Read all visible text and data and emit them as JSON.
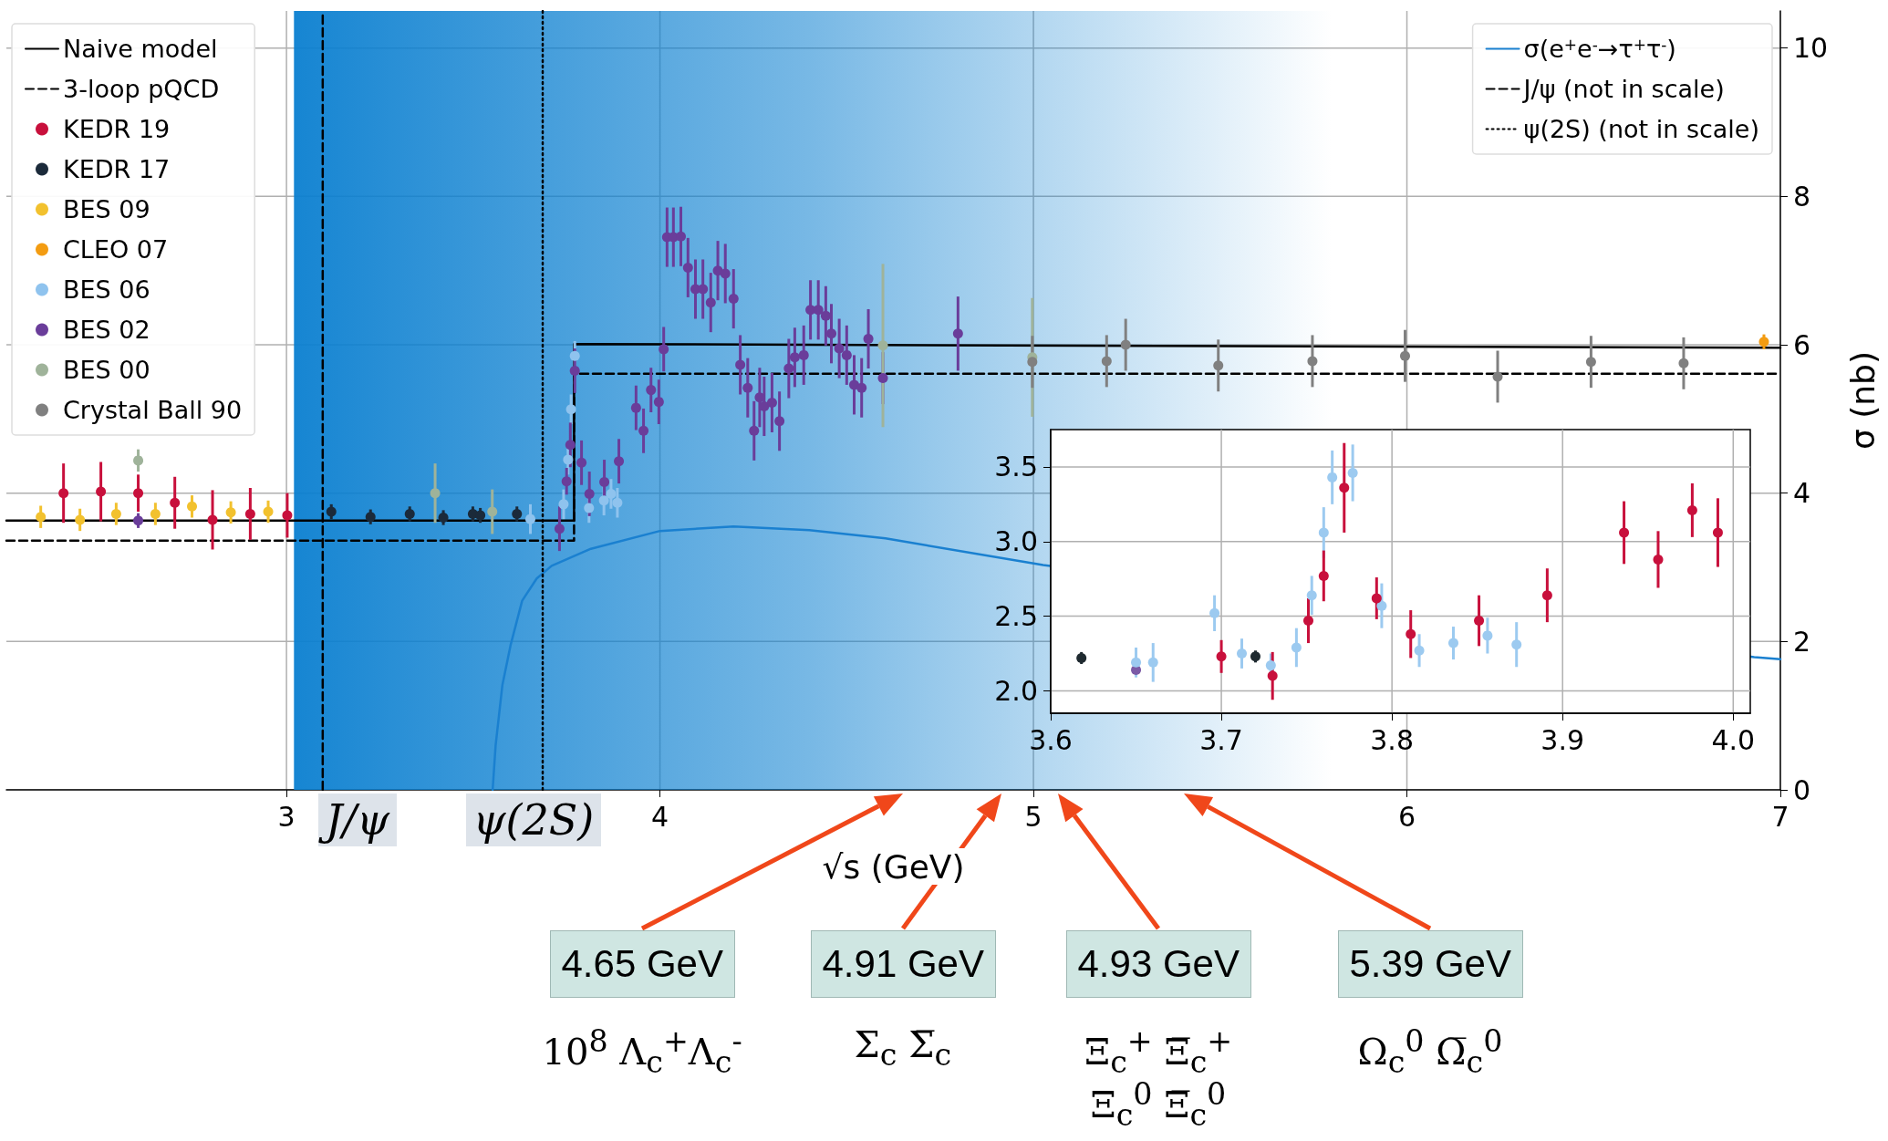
{
  "chart_data": [
    {
      "type": "scatter",
      "xlabel": "√s (GeV)",
      "ylabel": "σ (nb)",
      "xlim": [
        2.25,
        7
      ],
      "xticks": [
        3,
        4,
        5,
        6,
        7
      ],
      "ylim": [
        0,
        10.5
      ],
      "yticks": [
        0,
        2,
        4,
        6,
        8,
        10
      ],
      "grid": true,
      "legend": "top",
      "bands": [
        {
          "axis": "x",
          "from": 3.02,
          "to": 5.8,
          "color": "#0a7fd0"
        }
      ],
      "series": [
        {
          "name": "Naive model",
          "type": "line",
          "color": "#000000",
          "x": [
            2.25,
            3.77,
            3.77,
            7
          ],
          "values": [
            3.63,
            3.63,
            6.01,
            5.96
          ]
        },
        {
          "name": "3-loop pQCD",
          "type": "line",
          "line_style": "dashed",
          "color": "#000000",
          "x": [
            2.25,
            3.77,
            3.77,
            7
          ],
          "values": [
            3.36,
            3.36,
            5.61,
            5.61
          ]
        },
        {
          "name": "KEDR 19",
          "color": "#c8103c",
          "x": [
            2.403,
            2.503,
            2.603,
            2.701,
            2.802,
            2.903,
            3.002
          ],
          "values": [
            4.0,
            4.02,
            4.0,
            3.87,
            3.64,
            3.72,
            3.7
          ],
          "errors": [
            0.4,
            0.4,
            0.25,
            0.35,
            0.4,
            0.35,
            0.3
          ]
        },
        {
          "name": "KEDR 17",
          "color": "#1b2a3a",
          "x": [
            3.12,
            3.225,
            3.33,
            3.42,
            3.499,
            3.519,
            3.617
          ],
          "values": [
            3.75,
            3.68,
            3.72,
            3.67,
            3.72,
            3.7,
            3.72
          ],
          "errors": [
            0.1,
            0.1,
            0.1,
            0.1,
            0.1,
            0.1,
            0.1
          ]
        },
        {
          "name": "BES 09",
          "color": "#f2c12e",
          "x": [
            2.342,
            2.447,
            2.544,
            2.649,
            2.747,
            2.851,
            2.951
          ],
          "values": [
            3.68,
            3.64,
            3.72,
            3.72,
            3.82,
            3.74,
            3.75
          ],
          "errors": [
            0.15,
            0.15,
            0.15,
            0.15,
            0.15,
            0.15,
            0.15
          ]
        },
        {
          "name": "CLEO 07",
          "color": "#f39c12",
          "x": [
            6.956
          ],
          "values": [
            6.04
          ],
          "errors": [
            0.1
          ]
        },
        {
          "name": "BES 06",
          "color": "#8fc3ee",
          "x": [
            3.653,
            3.742,
            3.754,
            3.762,
            3.772,
            3.81,
            3.85,
            3.869,
            3.886
          ],
          "values": [
            3.65,
            3.85,
            4.45,
            5.13,
            5.85,
            3.8,
            3.9,
            3.99,
            3.87
          ],
          "errors": [
            0.2,
            0.2,
            0.2,
            0.2,
            0.2,
            0.2,
            0.2,
            0.2,
            0.2
          ]
        },
        {
          "name": "BES 02",
          "color": "#6a3d9a",
          "x": [
            2.603,
            3.731,
            3.75,
            3.76,
            3.772,
            3.79,
            3.811,
            3.851,
            3.89,
            3.936,
            3.956,
            3.976,
            3.997,
            4.01,
            4.019,
            4.036,
            4.056,
            4.075,
            4.095,
            4.115,
            4.136,
            4.155,
            4.175,
            4.197,
            4.215,
            4.235,
            4.252,
            4.267,
            4.279,
            4.3,
            4.32,
            4.345,
            4.361,
            4.385,
            4.403,
            4.424,
            4.444,
            4.459,
            4.48,
            4.5,
            4.52,
            4.54,
            4.558,
            4.597,
            4.798
          ],
          "values": [
            3.63,
            3.52,
            4.16,
            4.65,
            5.65,
            4.41,
            3.99,
            4.15,
            4.43,
            5.15,
            4.84,
            5.39,
            5.23,
            5.94,
            7.45,
            7.45,
            7.46,
            7.04,
            6.75,
            6.75,
            6.57,
            7.0,
            6.96,
            6.62,
            5.73,
            5.42,
            4.84,
            5.29,
            5.17,
            5.22,
            4.97,
            5.68,
            5.83,
            5.86,
            6.47,
            6.47,
            6.39,
            6.15,
            5.95,
            5.86,
            5.46,
            5.42,
            6.08,
            5.55,
            6.15
          ],
          "errors": [
            0.1,
            0.3,
            0.18,
            0.3,
            0.3,
            0.3,
            0.3,
            0.3,
            0.3,
            0.3,
            0.3,
            0.3,
            0.3,
            0.3,
            0.4,
            0.4,
            0.4,
            0.4,
            0.4,
            0.4,
            0.4,
            0.4,
            0.4,
            0.4,
            0.4,
            0.4,
            0.4,
            0.4,
            0.4,
            0.4,
            0.4,
            0.4,
            0.4,
            0.4,
            0.4,
            0.4,
            0.4,
            0.4,
            0.4,
            0.4,
            0.4,
            0.4,
            0.4,
            0.35,
            0.5
          ]
        },
        {
          "name": "BES 00",
          "color": "#9fb39a",
          "x": [
            2.603,
            3.398,
            3.551,
            4.597,
            4.997
          ],
          "values": [
            4.44,
            4.0,
            3.75,
            5.99,
            5.83
          ],
          "errors": [
            0.15,
            0.4,
            0.3,
            1.1,
            0.8
          ]
        },
        {
          "name": "Crystal Ball 90",
          "color": "#808080",
          "x": [
            4.997,
            5.196,
            5.247,
            5.495,
            5.747,
            5.995,
            6.243,
            6.493,
            6.741
          ],
          "values": [
            5.77,
            5.78,
            6.0,
            5.72,
            5.78,
            5.85,
            5.57,
            5.77,
            5.75
          ],
          "errors": [
            0.35,
            0.35,
            0.35,
            0.35,
            0.35,
            0.35,
            0.35,
            0.35,
            0.35
          ]
        },
        {
          "name": "σ(e$^{+}$e$^{-}$→τ$^{+}$τ$^{-}$)",
          "type": "line",
          "color": "#1a80d0",
          "x": [
            3.552,
            3.56,
            3.578,
            3.6,
            3.631,
            3.67,
            3.71,
            3.815,
            4.0,
            4.197,
            4.4,
            4.604,
            5.026,
            6.93,
            7.0
          ],
          "values": [
            0,
            0.6,
            1.41,
            1.95,
            2.55,
            2.85,
            3.02,
            3.25,
            3.49,
            3.55,
            3.5,
            3.39,
            3.03,
            1.79,
            1.76
          ]
        },
        {
          "name": "J/ψ (not in scale)",
          "type": "line",
          "line_style": "dashed",
          "color": "#000000",
          "x": [
            3.097,
            3.097
          ],
          "values": [
            0,
            10.5
          ]
        },
        {
          "name": "ψ(2S) (not in scale)",
          "type": "line",
          "line_style": "dotted",
          "color": "#000000",
          "x": [
            3.686,
            3.686
          ],
          "values": [
            0,
            10.5
          ]
        }
      ],
      "annotations": [
        "J/ψ",
        "ψ(2S)",
        "4.65 GeV",
        "4.91 GeV",
        "4.93 GeV",
        "5.39 GeV",
        "10$^{8}$ Λ$_{c}$$^{+}$Λ$_{c}$$^{-}$",
        "Σ$_{c}$ Σ̅$_{c}$",
        "Ξ$_{c}$$^{+}$ Ξ̅$_{c}$$^{+}$",
        "Ξ$_{c}$$^{0}$ Ξ̅$_{c}$$^{0}$",
        "Ω$_{c}$$^{0}$ Ω̅$_{c}$$^{0}$"
      ]
    },
    {
      "type": "scatter",
      "xlim": [
        3.6,
        4.01
      ],
      "xticks": [
        3.6,
        3.7,
        3.8,
        3.9,
        {
          "value": 4,
          "label": "4.0"
        }
      ],
      "ylim": [
        1.85,
        3.75
      ],
      "yticks": [
        {
          "value": 2,
          "label": "2.0"
        },
        2.5,
        {
          "value": 3,
          "label": "3.0"
        },
        3.5
      ],
      "grid": true,
      "series": [
        {
          "color": "#1f2a30",
          "x": [
            3.618,
            3.72
          ],
          "values": [
            2.22,
            2.23
          ],
          "errors": [
            0.04,
            0.04
          ]
        },
        {
          "color": "#7b5aa6",
          "x": [
            3.65
          ],
          "values": [
            2.14
          ]
        },
        {
          "color": "#9ccaf0",
          "x": [
            3.65,
            3.66,
            3.696,
            3.712,
            3.729,
            3.744,
            3.753,
            3.76,
            3.765,
            3.777,
            3.794,
            3.816,
            3.836,
            3.856,
            3.873
          ],
          "values": [
            2.19,
            2.19,
            2.52,
            2.25,
            2.17,
            2.29,
            2.64,
            3.06,
            3.43,
            3.46,
            2.57,
            2.27,
            2.32,
            2.37,
            2.31
          ],
          "errors": [
            0.1,
            0.13,
            0.12,
            0.1,
            0.08,
            0.13,
            0.13,
            0.17,
            0.18,
            0.19,
            0.15,
            0.11,
            0.11,
            0.12,
            0.15
          ]
        },
        {
          "color": "#c8103c",
          "x": [
            3.7,
            3.73,
            3.751,
            3.76,
            3.772,
            3.791,
            3.811,
            3.851,
            3.891,
            3.936,
            3.956,
            3.976,
            3.991
          ],
          "values": [
            2.23,
            2.1,
            2.47,
            2.77,
            3.36,
            2.62,
            2.38,
            2.47,
            2.64,
            3.06,
            2.88,
            3.21,
            3.06
          ],
          "errors": [
            0.11,
            0.16,
            0.15,
            0.17,
            0.3,
            0.14,
            0.16,
            0.17,
            0.18,
            0.21,
            0.19,
            0.18,
            0.23
          ]
        }
      ]
    }
  ]
}
